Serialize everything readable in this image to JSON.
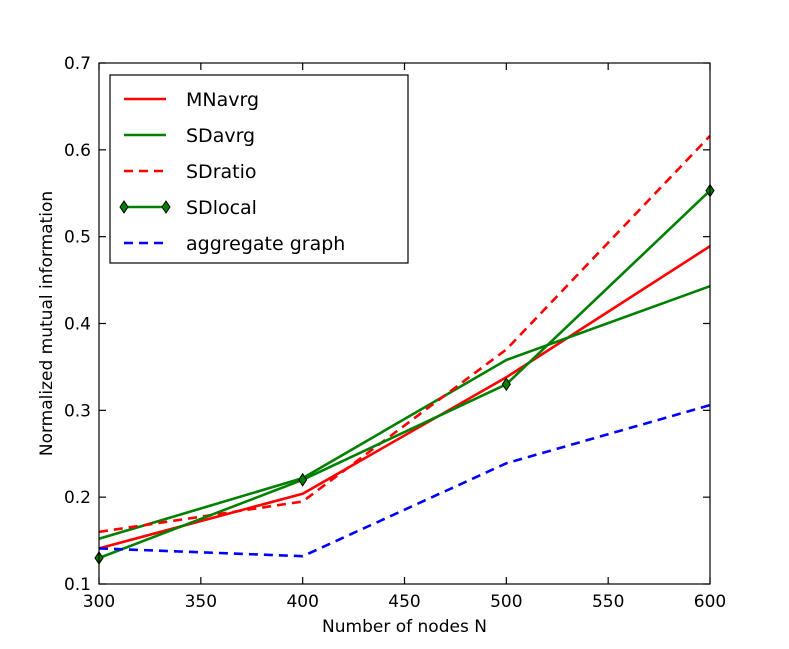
{
  "chart_data": {
    "type": "line",
    "title": "",
    "xlabel": "Number of nodes N",
    "ylabel": "Normalized mutual information",
    "xlim": [
      300,
      600
    ],
    "ylim": [
      0.1,
      0.7
    ],
    "xticks": [
      300,
      350,
      400,
      450,
      500,
      550,
      600
    ],
    "xtick_labels": [
      "300",
      "350",
      "400",
      "450",
      "500",
      "550",
      "600"
    ],
    "yticks": [
      0.1,
      0.2,
      0.3,
      0.4,
      0.5,
      0.6,
      0.7
    ],
    "ytick_labels": [
      "0.1",
      "0.2",
      "0.3",
      "0.4",
      "0.5",
      "0.6",
      "0.7"
    ],
    "grid": false,
    "legend_position": "top-left",
    "series": [
      {
        "name": "MNavrg",
        "color": "#ff0000",
        "style": "solid",
        "marker": "none",
        "x": [
          300,
          400,
          500,
          600
        ],
        "values": [
          0.141,
          0.204,
          0.338,
          0.489
        ]
      },
      {
        "name": "SDavrg",
        "color": "#008000",
        "style": "solid",
        "marker": "none",
        "x": [
          300,
          400,
          500,
          600
        ],
        "values": [
          0.152,
          0.222,
          0.358,
          0.443
        ]
      },
      {
        "name": "SDratio",
        "color": "#ff0000",
        "style": "dashed",
        "marker": "none",
        "x": [
          300,
          400,
          500,
          600
        ],
        "values": [
          0.16,
          0.195,
          0.37,
          0.616
        ]
      },
      {
        "name": "SDlocal",
        "color": "#008000",
        "style": "solid",
        "marker": "diamond",
        "x": [
          300,
          400,
          500,
          600
        ],
        "values": [
          0.13,
          0.22,
          0.33,
          0.553
        ]
      },
      {
        "name": "aggregate graph",
        "color": "#0000ff",
        "style": "dashed",
        "marker": "none",
        "x": [
          300,
          400,
          500,
          600
        ],
        "values": [
          0.141,
          0.132,
          0.239,
          0.306
        ]
      }
    ]
  }
}
